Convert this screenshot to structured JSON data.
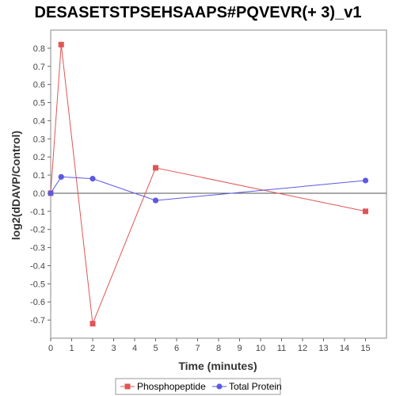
{
  "chart_data": {
    "type": "line",
    "title": "DESASETSTPSEHSAAPS#PQVEVR(+ 3)_v1",
    "xlabel": "Time (minutes)",
    "ylabel": "log2(dDAVP/Control)",
    "xlim": [
      0,
      16
    ],
    "ylim": [
      -0.8,
      0.9
    ],
    "x_ticks": [
      0,
      1,
      2,
      3,
      4,
      5,
      6,
      7,
      8,
      9,
      10,
      11,
      12,
      13,
      14,
      15
    ],
    "y_ticks": [
      -0.7,
      -0.6,
      -0.5,
      -0.4,
      -0.3,
      -0.2,
      -0.1,
      0.0,
      0.1,
      0.2,
      0.3,
      0.4,
      0.5,
      0.6,
      0.7,
      0.8
    ],
    "x_tick_labels": [
      "0",
      "1",
      "2",
      "3",
      "4",
      "5",
      "6",
      "7",
      "8",
      "9",
      "10",
      "11",
      "12",
      "13",
      "14",
      "15"
    ],
    "y_tick_labels": [
      "-0.7",
      "-0.6",
      "-0.5",
      "-0.4",
      "-0.3",
      "-0.2",
      "-0.1",
      "0.0",
      "0.1",
      "0.2",
      "0.3",
      "0.4",
      "0.5",
      "0.6",
      "0.7",
      "0.8"
    ],
    "grid": false,
    "zero_line": true,
    "legend_position": "bottom",
    "series": [
      {
        "name": "Phosphopeptide",
        "color": "#e05555",
        "marker": "square",
        "x": [
          0,
          0.5,
          2,
          5,
          15
        ],
        "y": [
          0.0,
          0.82,
          -0.72,
          0.14,
          -0.1
        ]
      },
      {
        "name": "Total Protein",
        "color": "#5a5ae0",
        "marker": "circle",
        "x": [
          0,
          0.5,
          2,
          5,
          15
        ],
        "y": [
          0.0,
          0.09,
          0.08,
          -0.04,
          0.07
        ]
      }
    ]
  }
}
